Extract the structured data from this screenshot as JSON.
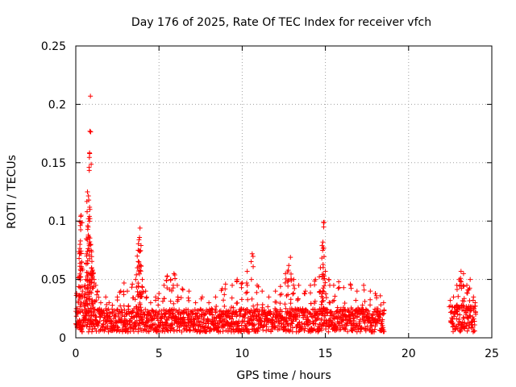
{
  "chart_data": {
    "type": "scatter",
    "title": "Day 176 of 2025, Rate Of TEC Index for receiver vfch",
    "xlabel": "GPS time / hours",
    "ylabel": "ROTI / TECUs",
    "xlim": [
      0,
      25
    ],
    "ylim": [
      0,
      0.25
    ],
    "xticks": [
      0,
      5,
      10,
      15,
      20,
      25
    ],
    "xtick_labels": [
      "0",
      "5",
      "10",
      "15",
      "20",
      "25"
    ],
    "yticks": [
      0,
      0.05,
      0.1,
      0.15,
      0.2,
      0.25
    ],
    "ytick_labels": [
      "0",
      "0.05",
      "0.1",
      "0.15",
      "0.2",
      "0.25"
    ],
    "grid": true,
    "marker": "+",
    "color": "#ff0000",
    "series": [
      {
        "name": "ROTI",
        "points": [
          [
            0.0,
            0.012
          ],
          [
            0.05,
            0.038
          ],
          [
            0.1,
            0.025
          ],
          [
            0.15,
            0.03
          ],
          [
            0.2,
            0.068
          ],
          [
            0.22,
            0.072
          ],
          [
            0.25,
            0.08
          ],
          [
            0.28,
            0.083
          ],
          [
            0.3,
            0.104
          ],
          [
            0.32,
            0.105
          ],
          [
            0.35,
            0.065
          ],
          [
            0.4,
            0.04
          ],
          [
            0.45,
            0.03
          ],
          [
            0.5,
            0.035
          ],
          [
            0.55,
            0.045
          ],
          [
            0.6,
            0.05
          ],
          [
            0.65,
            0.07
          ],
          [
            0.68,
            0.108
          ],
          [
            0.7,
            0.125
          ],
          [
            0.72,
            0.096
          ],
          [
            0.75,
            0.088
          ],
          [
            0.78,
            0.118
          ],
          [
            0.8,
            0.146
          ],
          [
            0.82,
            0.104
          ],
          [
            0.85,
            0.177
          ],
          [
            0.88,
            0.207
          ],
          [
            0.9,
            0.08
          ],
          [
            0.92,
            0.075
          ],
          [
            0.95,
            0.06
          ],
          [
            1.0,
            0.058
          ],
          [
            1.05,
            0.055
          ],
          [
            1.1,
            0.05
          ],
          [
            1.2,
            0.045
          ],
          [
            1.3,
            0.04
          ],
          [
            1.5,
            0.03
          ],
          [
            1.8,
            0.035
          ],
          [
            2.0,
            0.03
          ],
          [
            2.2,
            0.028
          ],
          [
            2.5,
            0.035
          ],
          [
            2.7,
            0.04
          ],
          [
            2.9,
            0.047
          ],
          [
            3.1,
            0.04
          ],
          [
            3.4,
            0.046
          ],
          [
            3.6,
            0.05
          ],
          [
            3.7,
            0.06
          ],
          [
            3.75,
            0.075
          ],
          [
            3.8,
            0.084
          ],
          [
            3.83,
            0.086
          ],
          [
            3.86,
            0.094
          ],
          [
            3.9,
            0.062
          ],
          [
            4.0,
            0.05
          ],
          [
            4.2,
            0.04
          ],
          [
            4.5,
            0.03
          ],
          [
            4.8,
            0.035
          ],
          [
            5.0,
            0.038
          ],
          [
            5.3,
            0.045
          ],
          [
            5.5,
            0.053
          ],
          [
            5.7,
            0.05
          ],
          [
            5.9,
            0.055
          ],
          [
            6.1,
            0.045
          ],
          [
            6.4,
            0.042
          ],
          [
            6.8,
            0.04
          ],
          [
            7.2,
            0.03
          ],
          [
            7.6,
            0.035
          ],
          [
            8.0,
            0.03
          ],
          [
            8.4,
            0.035
          ],
          [
            8.8,
            0.042
          ],
          [
            9.0,
            0.046
          ],
          [
            9.4,
            0.045
          ],
          [
            9.7,
            0.05
          ],
          [
            10.0,
            0.047
          ],
          [
            10.3,
            0.057
          ],
          [
            10.6,
            0.072
          ],
          [
            10.9,
            0.045
          ],
          [
            11.2,
            0.04
          ],
          [
            11.6,
            0.035
          ],
          [
            12.0,
            0.04
          ],
          [
            12.3,
            0.044
          ],
          [
            12.6,
            0.055
          ],
          [
            12.8,
            0.062
          ],
          [
            12.9,
            0.069
          ],
          [
            13.1,
            0.05
          ],
          [
            13.4,
            0.045
          ],
          [
            13.8,
            0.04
          ],
          [
            14.1,
            0.045
          ],
          [
            14.4,
            0.05
          ],
          [
            14.7,
            0.06
          ],
          [
            14.8,
            0.079
          ],
          [
            14.85,
            0.082
          ],
          [
            14.9,
            0.095
          ],
          [
            14.92,
            0.099
          ],
          [
            15.0,
            0.057
          ],
          [
            15.2,
            0.05
          ],
          [
            15.5,
            0.045
          ],
          [
            15.8,
            0.048
          ],
          [
            16.1,
            0.043
          ],
          [
            16.5,
            0.046
          ],
          [
            16.9,
            0.04
          ],
          [
            17.3,
            0.045
          ],
          [
            17.7,
            0.04
          ],
          [
            18.0,
            0.038
          ],
          [
            18.3,
            0.036
          ],
          [
            18.5,
            0.03
          ],
          [
            22.5,
            0.032
          ],
          [
            22.7,
            0.035
          ],
          [
            22.9,
            0.045
          ],
          [
            23.05,
            0.05
          ],
          [
            23.15,
            0.057
          ],
          [
            23.3,
            0.055
          ],
          [
            23.5,
            0.045
          ],
          [
            23.7,
            0.05
          ],
          [
            23.9,
            0.035
          ],
          [
            24.0,
            0.03
          ]
        ]
      }
    ],
    "bands": [
      {
        "x_start": 0.0,
        "x_end": 18.5,
        "y_min": 0.005,
        "y_max": 0.025
      },
      {
        "x_start": 22.5,
        "x_end": 24.0,
        "y_min": 0.005,
        "y_max": 0.028
      }
    ]
  }
}
